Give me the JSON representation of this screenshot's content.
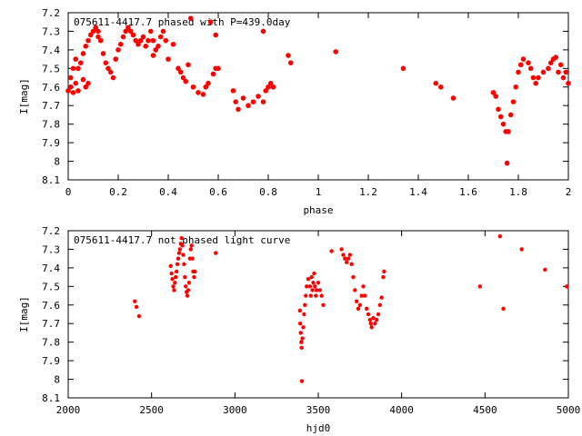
{
  "chart_data": [
    {
      "type": "scatter",
      "title": "075611-4417.7 phased with P=439.0day",
      "xlabel": "phase",
      "ylabel": "I[mag]",
      "xlim": [
        0,
        2
      ],
      "ylim": [
        7.2,
        8.1
      ],
      "y_inverted": true,
      "marker_color": "#ff0000",
      "xticks": [
        "0",
        "0.2",
        "0.4",
        "0.6",
        "0.8",
        "1",
        "1.2",
        "1.4",
        "1.6",
        "1.8",
        "2"
      ],
      "xtick_values": [
        0,
        0.2,
        0.4,
        0.6,
        0.8,
        1.0,
        1.2,
        1.4,
        1.6,
        1.8,
        2.0
      ],
      "yticks": [
        "7.2",
        "7.3",
        "7.4",
        "7.5",
        "7.6",
        "7.7",
        "7.8",
        "7.9",
        "8",
        "8.1"
      ],
      "ytick_values": [
        7.2,
        7.3,
        7.4,
        7.5,
        7.6,
        7.7,
        7.8,
        7.9,
        8.0,
        8.1
      ],
      "points": [
        [
          0.0,
          7.62
        ],
        [
          0.01,
          7.55
        ],
        [
          0.01,
          7.6
        ],
        [
          0.02,
          7.5
        ],
        [
          0.02,
          7.63
        ],
        [
          0.03,
          7.45
        ],
        [
          0.03,
          7.58
        ],
        [
          0.04,
          7.5
        ],
        [
          0.04,
          7.62
        ],
        [
          0.05,
          7.47
        ],
        [
          0.06,
          7.42
        ],
        [
          0.06,
          7.56
        ],
        [
          0.07,
          7.38
        ],
        [
          0.07,
          7.6
        ],
        [
          0.08,
          7.35
        ],
        [
          0.08,
          7.58
        ],
        [
          0.09,
          7.32
        ],
        [
          0.1,
          7.3
        ],
        [
          0.11,
          7.28
        ],
        [
          0.12,
          7.3
        ],
        [
          0.12,
          7.33
        ],
        [
          0.13,
          7.35
        ],
        [
          0.14,
          7.42
        ],
        [
          0.15,
          7.47
        ],
        [
          0.16,
          7.5
        ],
        [
          0.17,
          7.52
        ],
        [
          0.18,
          7.55
        ],
        [
          0.19,
          7.45
        ],
        [
          0.2,
          7.4
        ],
        [
          0.21,
          7.37
        ],
        [
          0.22,
          7.33
        ],
        [
          0.23,
          7.3
        ],
        [
          0.24,
          7.28
        ],
        [
          0.25,
          7.3
        ],
        [
          0.26,
          7.32
        ],
        [
          0.27,
          7.35
        ],
        [
          0.28,
          7.37
        ],
        [
          0.29,
          7.35
        ],
        [
          0.3,
          7.33
        ],
        [
          0.31,
          7.38
        ],
        [
          0.32,
          7.35
        ],
        [
          0.33,
          7.3
        ],
        [
          0.34,
          7.35
        ],
        [
          0.34,
          7.43
        ],
        [
          0.35,
          7.4
        ],
        [
          0.36,
          7.38
        ],
        [
          0.37,
          7.33
        ],
        [
          0.38,
          7.3
        ],
        [
          0.39,
          7.35
        ],
        [
          0.4,
          7.45
        ],
        [
          0.42,
          7.37
        ],
        [
          0.44,
          7.5
        ],
        [
          0.45,
          7.52
        ],
        [
          0.46,
          7.55
        ],
        [
          0.47,
          7.57
        ],
        [
          0.48,
          7.48
        ],
        [
          0.49,
          7.23
        ],
        [
          0.5,
          7.6
        ],
        [
          0.52,
          7.63
        ],
        [
          0.54,
          7.64
        ],
        [
          0.55,
          7.6
        ],
        [
          0.56,
          7.58
        ],
        [
          0.57,
          7.25
        ],
        [
          0.58,
          7.53
        ],
        [
          0.59,
          7.5
        ],
        [
          0.59,
          7.32
        ],
        [
          0.6,
          7.5
        ],
        [
          0.66,
          7.62
        ],
        [
          0.67,
          7.68
        ],
        [
          0.68,
          7.72
        ],
        [
          0.7,
          7.66
        ],
        [
          0.72,
          7.7
        ],
        [
          0.74,
          7.68
        ],
        [
          0.76,
          7.65
        ],
        [
          0.78,
          7.3
        ],
        [
          0.78,
          7.68
        ],
        [
          0.79,
          7.62
        ],
        [
          0.8,
          7.6
        ],
        [
          0.81,
          7.58
        ],
        [
          0.82,
          7.6
        ],
        [
          0.88,
          7.43
        ],
        [
          0.89,
          7.47
        ],
        [
          1.07,
          7.41
        ],
        [
          1.34,
          7.5
        ],
        [
          1.47,
          7.58
        ],
        [
          1.49,
          7.6
        ],
        [
          1.54,
          7.66
        ],
        [
          1.7,
          7.63
        ],
        [
          1.71,
          7.65
        ],
        [
          1.72,
          7.72
        ],
        [
          1.73,
          7.76
        ],
        [
          1.74,
          7.8
        ],
        [
          1.75,
          7.84
        ],
        [
          1.755,
          8.01
        ],
        [
          1.76,
          7.84
        ],
        [
          1.77,
          7.75
        ],
        [
          1.78,
          7.68
        ],
        [
          1.79,
          7.6
        ],
        [
          1.8,
          7.52
        ],
        [
          1.81,
          7.48
        ],
        [
          1.82,
          7.45
        ],
        [
          1.84,
          7.47
        ],
        [
          1.85,
          7.5
        ],
        [
          1.86,
          7.55
        ],
        [
          1.87,
          7.58
        ],
        [
          1.88,
          7.55
        ],
        [
          1.9,
          7.52
        ],
        [
          1.92,
          7.5
        ],
        [
          1.93,
          7.47
        ],
        [
          1.94,
          7.45
        ],
        [
          1.95,
          7.44
        ],
        [
          1.96,
          7.52
        ],
        [
          1.97,
          7.48
        ],
        [
          1.98,
          7.55
        ],
        [
          1.99,
          7.52
        ],
        [
          2.0,
          7.58
        ]
      ]
    },
    {
      "type": "scatter",
      "title": "075611-4417.7 not phased light curve",
      "xlabel": "hjd0",
      "ylabel": "I[mag]",
      "xlim": [
        2000,
        5000
      ],
      "ylim": [
        7.2,
        8.1
      ],
      "y_inverted": true,
      "marker_color": "#ff0000",
      "xticks": [
        "2000",
        "2500",
        "3000",
        "3500",
        "4000",
        "4500",
        "5000"
      ],
      "xtick_values": [
        2000,
        2500,
        3000,
        3500,
        4000,
        4500,
        5000
      ],
      "yticks": [
        "7.2",
        "7.3",
        "7.4",
        "7.5",
        "7.6",
        "7.7",
        "7.8",
        "7.9",
        "8",
        "8.1"
      ],
      "ytick_values": [
        7.2,
        7.3,
        7.4,
        7.5,
        7.6,
        7.7,
        7.8,
        7.9,
        8.0,
        8.1
      ],
      "points": [
        [
          2400,
          7.58
        ],
        [
          2410,
          7.61
        ],
        [
          2425,
          7.66
        ],
        [
          2615,
          7.39
        ],
        [
          2620,
          7.43
        ],
        [
          2625,
          7.46
        ],
        [
          2630,
          7.5
        ],
        [
          2635,
          7.52
        ],
        [
          2640,
          7.48
        ],
        [
          2645,
          7.45
        ],
        [
          2650,
          7.42
        ],
        [
          2655,
          7.38
        ],
        [
          2660,
          7.35
        ],
        [
          2665,
          7.32
        ],
        [
          2670,
          7.3
        ],
        [
          2675,
          7.27
        ],
        [
          2680,
          7.24
        ],
        [
          2685,
          7.28
        ],
        [
          2690,
          7.33
        ],
        [
          2695,
          7.38
        ],
        [
          2700,
          7.45
        ],
        [
          2705,
          7.5
        ],
        [
          2710,
          7.53
        ],
        [
          2715,
          7.55
        ],
        [
          2720,
          7.52
        ],
        [
          2725,
          7.48
        ],
        [
          2730,
          7.35
        ],
        [
          2735,
          7.3
        ],
        [
          2740,
          7.28
        ],
        [
          2745,
          7.35
        ],
        [
          2750,
          7.42
        ],
        [
          2755,
          7.45
        ],
        [
          2760,
          7.42
        ],
        [
          2885,
          7.32
        ],
        [
          3390,
          7.63
        ],
        [
          3392,
          7.7
        ],
        [
          3395,
          7.75
        ],
        [
          3398,
          7.8
        ],
        [
          3400,
          7.83
        ],
        [
          3402,
          8.01
        ],
        [
          3405,
          7.78
        ],
        [
          3410,
          7.72
        ],
        [
          3415,
          7.65
        ],
        [
          3420,
          7.6
        ],
        [
          3425,
          7.55
        ],
        [
          3430,
          7.5
        ],
        [
          3440,
          7.46
        ],
        [
          3450,
          7.5
        ],
        [
          3455,
          7.55
        ],
        [
          3460,
          7.45
        ],
        [
          3465,
          7.52
        ],
        [
          3470,
          7.48
        ],
        [
          3475,
          7.43
        ],
        [
          3480,
          7.5
        ],
        [
          3485,
          7.55
        ],
        [
          3490,
          7.52
        ],
        [
          3500,
          7.48
        ],
        [
          3510,
          7.52
        ],
        [
          3520,
          7.55
        ],
        [
          3530,
          7.6
        ],
        [
          3580,
          7.31
        ],
        [
          3640,
          7.3
        ],
        [
          3650,
          7.33
        ],
        [
          3660,
          7.35
        ],
        [
          3670,
          7.37
        ],
        [
          3680,
          7.35
        ],
        [
          3690,
          7.33
        ],
        [
          3700,
          7.38
        ],
        [
          3710,
          7.45
        ],
        [
          3720,
          7.52
        ],
        [
          3730,
          7.58
        ],
        [
          3740,
          7.62
        ],
        [
          3750,
          7.6
        ],
        [
          3760,
          7.55
        ],
        [
          3770,
          7.5
        ],
        [
          3780,
          7.55
        ],
        [
          3790,
          7.62
        ],
        [
          3800,
          7.65
        ],
        [
          3810,
          7.68
        ],
        [
          3815,
          7.7
        ],
        [
          3820,
          7.72
        ],
        [
          3830,
          7.67
        ],
        [
          3840,
          7.7
        ],
        [
          3850,
          7.68
        ],
        [
          3860,
          7.65
        ],
        [
          3870,
          7.6
        ],
        [
          3880,
          7.56
        ],
        [
          3890,
          7.45
        ],
        [
          3895,
          7.42
        ],
        [
          4470,
          7.5
        ],
        [
          4590,
          7.23
        ],
        [
          4610,
          7.62
        ],
        [
          4720,
          7.3
        ],
        [
          4860,
          7.41
        ],
        [
          4990,
          7.5
        ]
      ]
    }
  ]
}
